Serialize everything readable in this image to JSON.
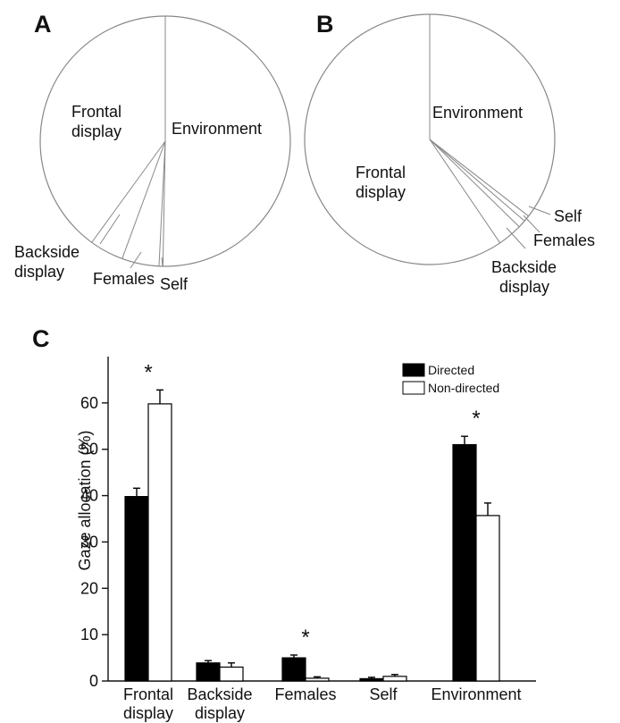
{
  "chart_data": [
    {
      "panel": "A",
      "type": "pie",
      "slices": [
        {
          "label": "Environment",
          "value": 50.3,
          "color": "#ffffff"
        },
        {
          "label": "Self",
          "value": 0.5,
          "color": "#ffffff"
        },
        {
          "label": "Females",
          "value": 4.8,
          "color": "#ffffff"
        },
        {
          "label": "Backside display",
          "value": 4.4,
          "color": "#ffffff"
        },
        {
          "label": "Frontal display",
          "value": 40.0,
          "color": "#ffffff"
        }
      ],
      "label_lines": [
        "Frontal\ndisplay",
        "Environment",
        "Backside\ndisplay",
        "Females",
        "Self"
      ]
    },
    {
      "panel": "B",
      "type": "pie",
      "slices": [
        {
          "label": "Environment",
          "value": 35.5,
          "color": "#ffffff"
        },
        {
          "label": "Self",
          "value": 0.8,
          "color": "#ffffff"
        },
        {
          "label": "Females",
          "value": 1.0,
          "color": "#ffffff"
        },
        {
          "label": "Backside display",
          "value": 3.2,
          "color": "#ffffff"
        },
        {
          "label": "Frontal display",
          "value": 59.5,
          "color": "#ffffff"
        }
      ],
      "label_lines": [
        "Environment",
        "Frontal\ndisplay",
        "Self",
        "Females",
        "Backside\ndisplay"
      ]
    },
    {
      "panel": "C",
      "type": "bar",
      "categories": [
        "Frontal\ndisplay",
        "Backside\ndisplay",
        "Females",
        "Self",
        "Environment"
      ],
      "series": [
        {
          "name": "Directed",
          "values": [
            39.8,
            3.9,
            5.0,
            0.5,
            51.0
          ],
          "errors": [
            1.8,
            0.5,
            0.6,
            0.3,
            1.8
          ],
          "color": "#000000"
        },
        {
          "name": "Non-directed",
          "values": [
            59.8,
            3.0,
            0.6,
            1.0,
            35.7
          ],
          "errors": [
            3.0,
            0.9,
            0.3,
            0.4,
            2.7
          ],
          "color": "#ffffff"
        }
      ],
      "ylabel": "Gaze allocation (%)",
      "ylim": [
        0,
        70
      ],
      "yticks": [
        0,
        10,
        20,
        30,
        40,
        50,
        60
      ],
      "significance": [
        "*",
        "",
        "*",
        "",
        "*"
      ],
      "legend": "top-right"
    }
  ]
}
